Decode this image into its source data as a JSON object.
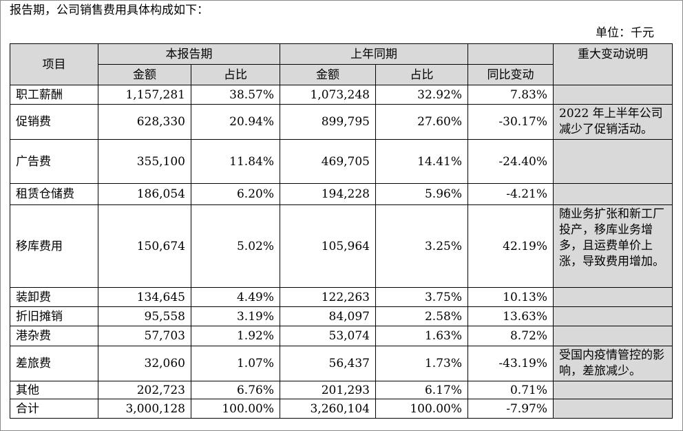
{
  "intro_text": "报告期，公司销售费用具体构成如下：",
  "unit_text": "单位：千元",
  "headers": {
    "item": "项目",
    "current_period": "本报告期",
    "prior_period": "上年同期",
    "change_note": "重大变动说明",
    "amount": "金额",
    "ratio": "占比",
    "yoy_change": "同比变动"
  },
  "rows": [
    {
      "item": "职工薪酬",
      "cur_amount": "1,157,281",
      "cur_ratio": "38.57%",
      "pri_amount": "1,073,248",
      "pri_ratio": "32.92%",
      "yoy": "7.83%",
      "note": ""
    },
    {
      "item": "促销费",
      "cur_amount": "628,330",
      "cur_ratio": "20.94%",
      "pri_amount": "899,795",
      "pri_ratio": "27.60%",
      "yoy": "-30.17%",
      "note": "2022 年上半年公司减少了促销活动。"
    },
    {
      "item": "广告费",
      "cur_amount": "355,100",
      "cur_ratio": "11.84%",
      "pri_amount": "469,705",
      "pri_ratio": "14.41%",
      "yoy": "-24.40%",
      "note": ""
    },
    {
      "item": "租赁仓储费",
      "cur_amount": "186,054",
      "cur_ratio": "6.20%",
      "pri_amount": "194,228",
      "pri_ratio": "5.96%",
      "yoy": "-4.21%",
      "note": ""
    },
    {
      "item": "移库费用",
      "cur_amount": "150,674",
      "cur_ratio": "5.02%",
      "pri_amount": "105,964",
      "pri_ratio": "3.25%",
      "yoy": "42.19%",
      "note": "随业务扩张和新工厂投产，移库业务增多，且运费单价上涨，导致费用增加。"
    },
    {
      "item": "装卸费",
      "cur_amount": "134,645",
      "cur_ratio": "4.49%",
      "pri_amount": "122,263",
      "pri_ratio": "3.75%",
      "yoy": "10.13%",
      "note": ""
    },
    {
      "item": "折旧摊销",
      "cur_amount": "95,558",
      "cur_ratio": "3.19%",
      "pri_amount": "84,097",
      "pri_ratio": "2.58%",
      "yoy": "13.63%",
      "note": ""
    },
    {
      "item": "港杂费",
      "cur_amount": "57,703",
      "cur_ratio": "1.92%",
      "pri_amount": "53,074",
      "pri_ratio": "1.63%",
      "yoy": "8.72%",
      "note": ""
    },
    {
      "item": "差旅费",
      "cur_amount": "32,060",
      "cur_ratio": "1.07%",
      "pri_amount": "56,437",
      "pri_ratio": "1.73%",
      "yoy": "-43.19%",
      "note": "受国内疫情管控的影响，差旅减少。"
    },
    {
      "item": "其他",
      "cur_amount": "202,723",
      "cur_ratio": "6.76%",
      "pri_amount": "201,293",
      "pri_ratio": "6.17%",
      "yoy": "0.71%",
      "note": ""
    },
    {
      "item": "合计",
      "cur_amount": "3,000,128",
      "cur_ratio": "100.00%",
      "pri_amount": "3,260,104",
      "pri_ratio": "100.00%",
      "yoy": "-7.97%",
      "note": ""
    }
  ],
  "colors": {
    "header_bg": "#d9d9d9",
    "note_bg": "#d9d9d9",
    "border": "#000000"
  }
}
